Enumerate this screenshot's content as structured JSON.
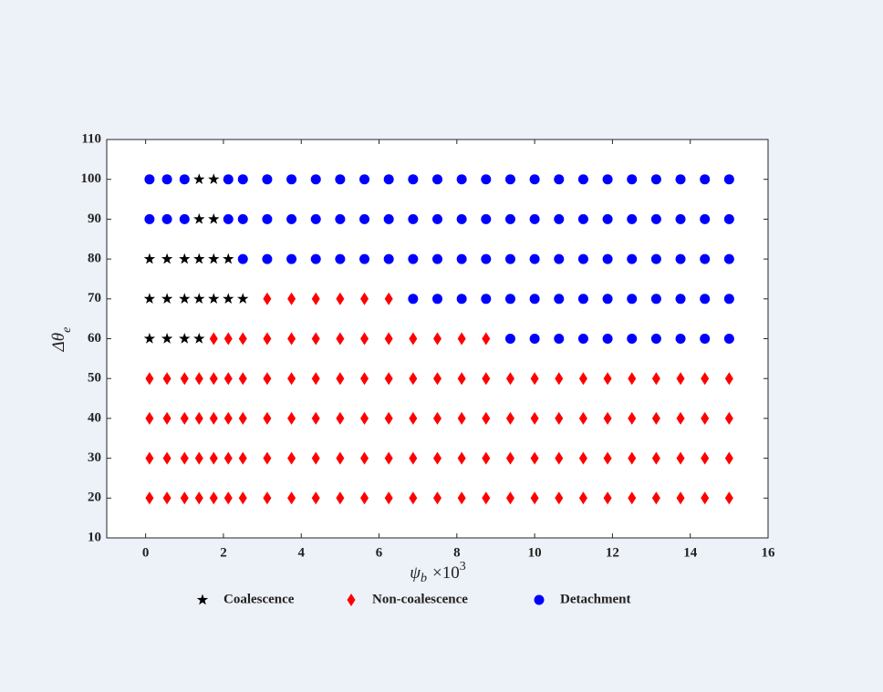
{
  "chart_data": {
    "type": "scatter",
    "x_label": {
      "symbol": "ψ",
      "subscript": "b",
      "multiplier": "×10",
      "exponent": "3"
    },
    "y_label": {
      "symbol": "Δθ",
      "subscript": "e"
    },
    "xlim": [
      -1,
      16
    ],
    "xticks": [
      0,
      2,
      4,
      6,
      8,
      10,
      12,
      14,
      16
    ],
    "ylim": [
      10,
      110
    ],
    "yticks": [
      10,
      20,
      30,
      40,
      50,
      60,
      70,
      80,
      90,
      100,
      110
    ],
    "grid": false,
    "legend": "bottom",
    "series": [
      {
        "name": "Coalescence",
        "color": "#000000",
        "marker": "star",
        "x": [
          1.375,
          1.75,
          1.375,
          1.75,
          0.1,
          0.55,
          1,
          1.375,
          1.75,
          2.125,
          0.1,
          0.55,
          1,
          1.375,
          1.75,
          2.125,
          2.5,
          0.1,
          0.55,
          1,
          1.375
        ],
        "y": [
          100,
          100,
          90,
          90,
          80,
          80,
          80,
          80,
          80,
          80,
          70,
          70,
          70,
          70,
          70,
          70,
          70,
          60,
          60,
          60,
          60
        ]
      },
      {
        "name": "Non-coalescence",
        "color": "#ff0000",
        "marker": "diamond",
        "x": [
          3.125,
          3.75,
          4.375,
          5,
          5.625,
          6.25,
          1.75,
          2.125,
          2.5,
          3.125,
          3.75,
          4.375,
          5,
          5.625,
          6.25,
          6.875,
          7.5,
          8.125,
          8.75,
          0.1,
          0.55,
          1,
          1.375,
          1.75,
          2.125,
          2.5,
          3.125,
          3.75,
          4.375,
          5,
          5.625,
          6.25,
          6.875,
          7.5,
          8.125,
          8.75,
          9.375,
          10,
          10.625,
          11.25,
          11.875,
          12.5,
          13.125,
          13.75,
          14.375,
          15,
          0.1,
          0.55,
          1,
          1.375,
          1.75,
          2.125,
          2.5,
          3.125,
          3.75,
          4.375,
          5,
          5.625,
          6.25,
          6.875,
          7.5,
          8.125,
          8.75,
          9.375,
          10,
          10.625,
          11.25,
          11.875,
          12.5,
          13.125,
          13.75,
          14.375,
          15,
          0.1,
          0.55,
          1,
          1.375,
          1.75,
          2.125,
          2.5,
          3.125,
          3.75,
          4.375,
          5,
          5.625,
          6.25,
          6.875,
          7.5,
          8.125,
          8.75,
          9.375,
          10,
          10.625,
          11.25,
          11.875,
          12.5,
          13.125,
          13.75,
          14.375,
          15,
          0.1,
          0.55,
          1,
          1.375,
          1.75,
          2.125,
          2.5,
          3.125,
          3.75,
          4.375,
          5,
          5.625,
          6.25,
          6.875,
          7.5,
          8.125,
          8.75,
          9.375,
          10,
          10.625,
          11.25,
          11.875,
          12.5,
          13.125,
          13.75,
          14.375,
          15
        ],
        "y": [
          70,
          70,
          70,
          70,
          70,
          70,
          60,
          60,
          60,
          60,
          60,
          60,
          60,
          60,
          60,
          60,
          60,
          60,
          60,
          50,
          50,
          50,
          50,
          50,
          50,
          50,
          50,
          50,
          50,
          50,
          50,
          50,
          50,
          50,
          50,
          50,
          50,
          50,
          50,
          50,
          50,
          50,
          50,
          50,
          50,
          50,
          40,
          40,
          40,
          40,
          40,
          40,
          40,
          40,
          40,
          40,
          40,
          40,
          40,
          40,
          40,
          40,
          40,
          40,
          40,
          40,
          40,
          40,
          40,
          40,
          40,
          40,
          40,
          30,
          30,
          30,
          30,
          30,
          30,
          30,
          30,
          30,
          30,
          30,
          30,
          30,
          30,
          30,
          30,
          30,
          30,
          30,
          30,
          30,
          30,
          30,
          30,
          30,
          30,
          30,
          20,
          20,
          20,
          20,
          20,
          20,
          20,
          20,
          20,
          20,
          20,
          20,
          20,
          20,
          20,
          20,
          20,
          20,
          20,
          20,
          20,
          20,
          20,
          20,
          20,
          20,
          20
        ]
      },
      {
        "name": "Detachment",
        "color": "#0000ff",
        "marker": "circle",
        "x": [
          0.1,
          0.55,
          1,
          2.125,
          2.5,
          3.125,
          3.75,
          4.375,
          5,
          5.625,
          6.25,
          6.875,
          7.5,
          8.125,
          8.75,
          9.375,
          10,
          10.625,
          11.25,
          11.875,
          12.5,
          13.125,
          13.75,
          14.375,
          15,
          0.1,
          0.55,
          1,
          2.125,
          2.5,
          3.125,
          3.75,
          4.375,
          5,
          5.625,
          6.25,
          6.875,
          7.5,
          8.125,
          8.75,
          9.375,
          10,
          10.625,
          11.25,
          11.875,
          12.5,
          13.125,
          13.75,
          14.375,
          15,
          2.5,
          3.125,
          3.75,
          4.375,
          5,
          5.625,
          6.25,
          6.875,
          7.5,
          8.125,
          8.75,
          9.375,
          10,
          10.625,
          11.25,
          11.875,
          12.5,
          13.125,
          13.75,
          14.375,
          15,
          6.875,
          7.5,
          8.125,
          8.75,
          9.375,
          10,
          10.625,
          11.25,
          11.875,
          12.5,
          13.125,
          13.75,
          14.375,
          15,
          9.375,
          10,
          10.625,
          11.25,
          11.875,
          12.5,
          13.125,
          13.75,
          14.375,
          15
        ],
        "y": [
          100,
          100,
          100,
          100,
          100,
          100,
          100,
          100,
          100,
          100,
          100,
          100,
          100,
          100,
          100,
          100,
          100,
          100,
          100,
          100,
          100,
          100,
          100,
          100,
          100,
          90,
          90,
          90,
          90,
          90,
          90,
          90,
          90,
          90,
          90,
          90,
          90,
          90,
          90,
          90,
          90,
          90,
          90,
          90,
          90,
          90,
          90,
          90,
          90,
          90,
          80,
          80,
          80,
          80,
          80,
          80,
          80,
          80,
          80,
          80,
          80,
          80,
          80,
          80,
          80,
          80,
          80,
          80,
          80,
          80,
          80,
          70,
          70,
          70,
          70,
          70,
          70,
          70,
          70,
          70,
          70,
          70,
          70,
          70,
          70,
          60,
          60,
          60,
          60,
          60,
          60,
          60,
          60,
          60,
          60
        ]
      }
    ]
  }
}
